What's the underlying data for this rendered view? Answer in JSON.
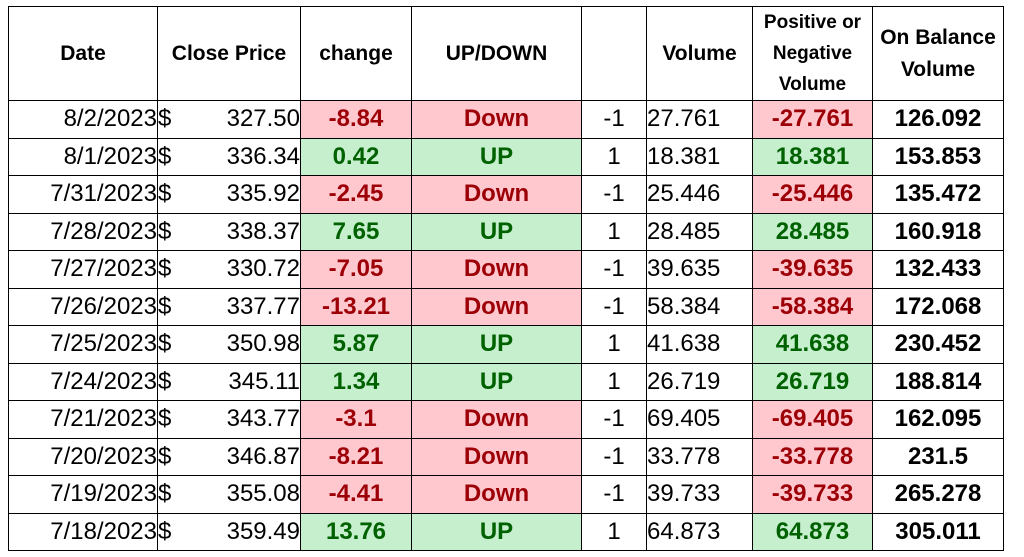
{
  "headers": {
    "date": "Date",
    "close_price": "Close Price",
    "change": "change",
    "up_down": "UP/DOWN",
    "sign": "",
    "volume": "Volume",
    "pos_neg_volume": [
      "Positive or",
      "Negative",
      "Volume"
    ],
    "obv": [
      "On Balance",
      "Volume"
    ]
  },
  "currency_symbol": "$",
  "colors": {
    "negative_fill": "#ffc7ce",
    "negative_text": "#9c0006",
    "positive_fill": "#c6efce",
    "positive_text": "#006100"
  },
  "rows": [
    {
      "date": "8/2/2023",
      "close": "327.50",
      "change": "-8.84",
      "dir": "Down",
      "sign": "-1",
      "volume": "27.761",
      "pn_volume": "-27.761",
      "obv": "126.092"
    },
    {
      "date": "8/1/2023",
      "close": "336.34",
      "change": "0.42",
      "dir": "UP",
      "sign": "1",
      "volume": "18.381",
      "pn_volume": "18.381",
      "obv": "153.853"
    },
    {
      "date": "7/31/2023",
      "close": "335.92",
      "change": "-2.45",
      "dir": "Down",
      "sign": "-1",
      "volume": "25.446",
      "pn_volume": "-25.446",
      "obv": "135.472"
    },
    {
      "date": "7/28/2023",
      "close": "338.37",
      "change": "7.65",
      "dir": "UP",
      "sign": "1",
      "volume": "28.485",
      "pn_volume": "28.485",
      "obv": "160.918"
    },
    {
      "date": "7/27/2023",
      "close": "330.72",
      "change": "-7.05",
      "dir": "Down",
      "sign": "-1",
      "volume": "39.635",
      "pn_volume": "-39.635",
      "obv": "132.433"
    },
    {
      "date": "7/26/2023",
      "close": "337.77",
      "change": "-13.21",
      "dir": "Down",
      "sign": "-1",
      "volume": "58.384",
      "pn_volume": "-58.384",
      "obv": "172.068"
    },
    {
      "date": "7/25/2023",
      "close": "350.98",
      "change": "5.87",
      "dir": "UP",
      "sign": "1",
      "volume": "41.638",
      "pn_volume": "41.638",
      "obv": "230.452"
    },
    {
      "date": "7/24/2023",
      "close": "345.11",
      "change": "1.34",
      "dir": "UP",
      "sign": "1",
      "volume": "26.719",
      "pn_volume": "26.719",
      "obv": "188.814"
    },
    {
      "date": "7/21/2023",
      "close": "343.77",
      "change": "-3.1",
      "dir": "Down",
      "sign": "-1",
      "volume": "69.405",
      "pn_volume": "-69.405",
      "obv": "162.095"
    },
    {
      "date": "7/20/2023",
      "close": "346.87",
      "change": "-8.21",
      "dir": "Down",
      "sign": "-1",
      "volume": "33.778",
      "pn_volume": "-33.778",
      "obv": "231.5"
    },
    {
      "date": "7/19/2023",
      "close": "355.08",
      "change": "-4.41",
      "dir": "Down",
      "sign": "-1",
      "volume": "39.733",
      "pn_volume": "-39.733",
      "obv": "265.278"
    },
    {
      "date": "7/18/2023",
      "close": "359.49",
      "change": "13.76",
      "dir": "UP",
      "sign": "1",
      "volume": "64.873",
      "pn_volume": "64.873",
      "obv": "305.011"
    }
  ]
}
